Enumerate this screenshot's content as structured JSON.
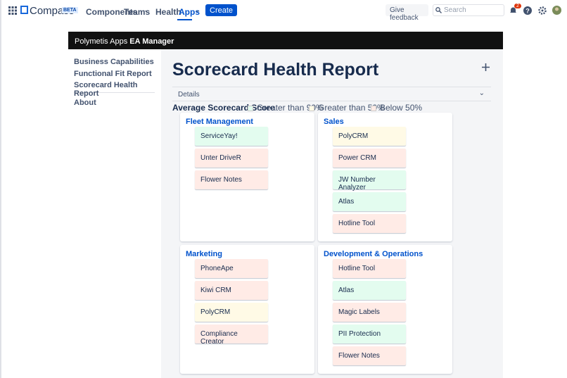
{
  "nav": {
    "product": "Compass",
    "badge": "BETA",
    "items": [
      "Components",
      "Teams",
      "Health",
      "Apps"
    ],
    "create": "Create",
    "feedback": "Give feedback",
    "search_placeholder": "Search",
    "notifications": "2"
  },
  "app_header": {
    "vendor": "Polymetis Apps",
    "app": "EA Manager"
  },
  "sidebar": {
    "links": [
      "Business Capabilities",
      "Functional Fit Report",
      "Scorecard Health Report"
    ],
    "about": "About"
  },
  "page": {
    "title": "Scorecard Health Report",
    "details": "Details"
  },
  "legend": {
    "title": "Average Scorecard Score",
    "items": [
      {
        "label": "Greater than 90%",
        "color": "#e3fcef"
      },
      {
        "label": "Greater than 50%",
        "color": "#fffae6"
      },
      {
        "label": "Below 50%",
        "color": "#ffebe6"
      }
    ]
  },
  "groups": [
    {
      "name": "Fleet Management",
      "items": [
        {
          "name": "ServiceYay!",
          "level": 0
        },
        {
          "name": "Unter DriveR",
          "level": 2
        },
        {
          "name": "Flower Notes",
          "level": 2
        }
      ]
    },
    {
      "name": "Sales",
      "items": [
        {
          "name": "PolyCRM",
          "level": 1
        },
        {
          "name": "Power CRM",
          "level": 2
        },
        {
          "name": "JW Number Analyzer",
          "level": 0
        },
        {
          "name": "Atlas",
          "level": 0
        },
        {
          "name": "Hotline Tool",
          "level": 2
        }
      ]
    },
    {
      "name": "Marketing",
      "items": [
        {
          "name": "PhoneApe",
          "level": 2
        },
        {
          "name": "Kiwi CRM",
          "level": 2
        },
        {
          "name": "PolyCRM",
          "level": 1
        },
        {
          "name": "Compliance Creator",
          "level": 2
        }
      ]
    },
    {
      "name": "Development & Operations",
      "items": [
        {
          "name": "Hotline Tool",
          "level": 2
        },
        {
          "name": "Atlas",
          "level": 0
        },
        {
          "name": "Magic Labels",
          "level": 2
        },
        {
          "name": "PII Protection",
          "level": 0
        },
        {
          "name": "Flower Notes",
          "level": 2
        }
      ]
    }
  ]
}
